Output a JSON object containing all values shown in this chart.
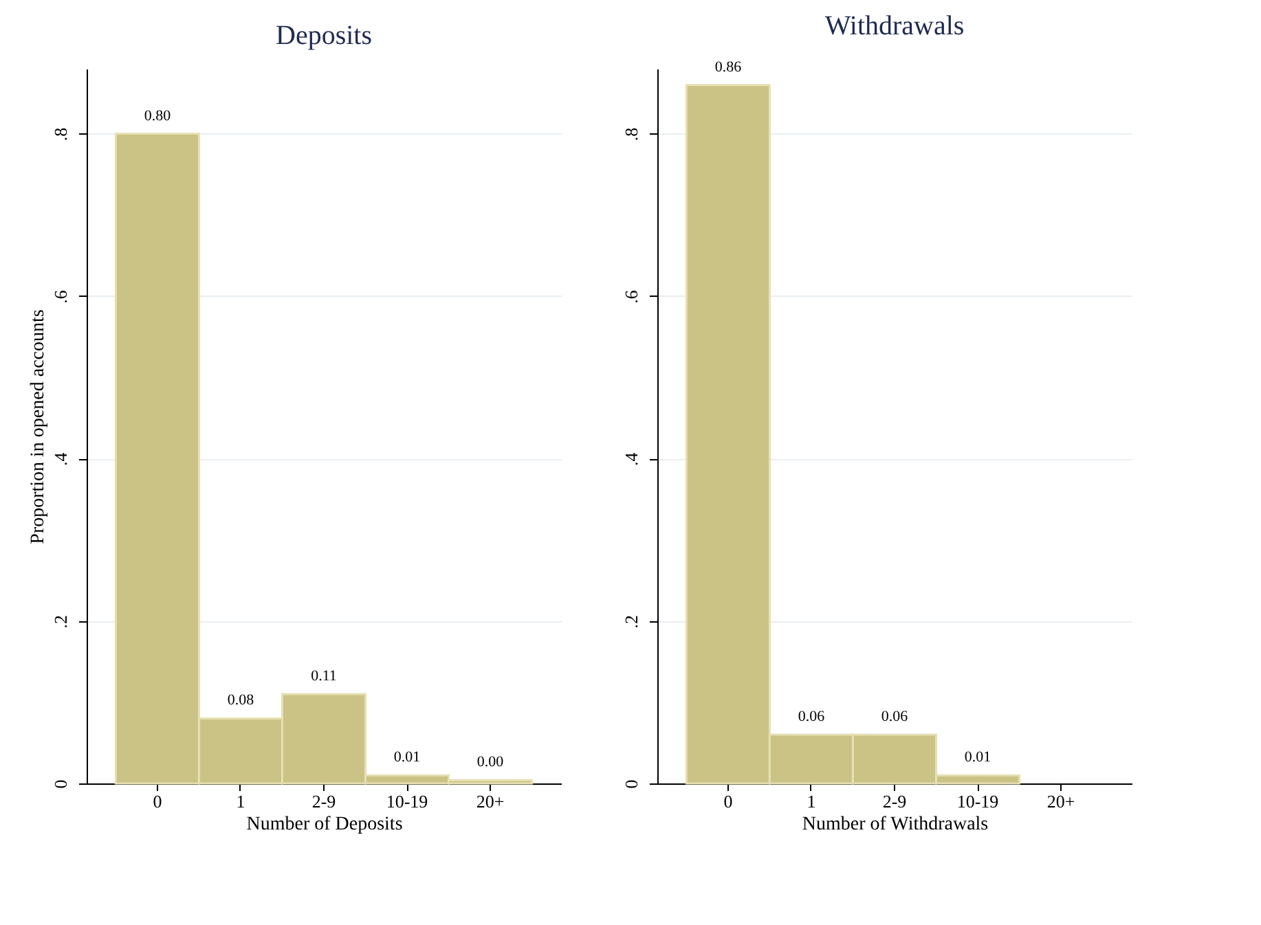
{
  "chart_data": [
    {
      "type": "bar",
      "title": "Deposits",
      "xlabel": "Number of Deposits",
      "ylabel": "Proportion in opened accounts",
      "categories": [
        "0",
        "1",
        "2-9",
        "10-19",
        "20+"
      ],
      "series": [
        {
          "color": "#cbc385",
          "values": [
            0.8,
            0.08,
            0.11,
            0.01,
            0.004
          ],
          "value_labels": [
            "0.80",
            "0.08",
            "0.11",
            "0.01",
            "0.00"
          ]
        }
      ],
      "ylim": [
        0,
        0.88
      ],
      "yticks": [
        0,
        {
          "value": 0.2,
          "label": ".2"
        },
        {
          "value": 0.4,
          "label": ".4"
        },
        {
          "value": 0.6,
          "label": ".6"
        },
        {
          "value": 0.8,
          "label": ".8"
        }
      ],
      "grid": "y"
    },
    {
      "type": "bar",
      "title": "Withdrawals",
      "xlabel": "Number of Withdrawals",
      "categories": [
        "0",
        "1",
        "2-9",
        "10-19",
        "20+"
      ],
      "series": [
        {
          "color": "#cbc385",
          "values": [
            0.86,
            0.06,
            0.06,
            0.01,
            null
          ],
          "value_labels": [
            "0.86",
            "0.06",
            "0.06",
            "0.01",
            null
          ]
        }
      ],
      "ylim": [
        0,
        0.88
      ],
      "yticks": [
        0,
        {
          "value": 0.2,
          "label": ".2"
        },
        {
          "value": 0.4,
          "label": ".4"
        },
        {
          "value": 0.6,
          "label": ".6"
        },
        {
          "value": 0.8,
          "label": ".8"
        }
      ],
      "grid": "y"
    }
  ]
}
